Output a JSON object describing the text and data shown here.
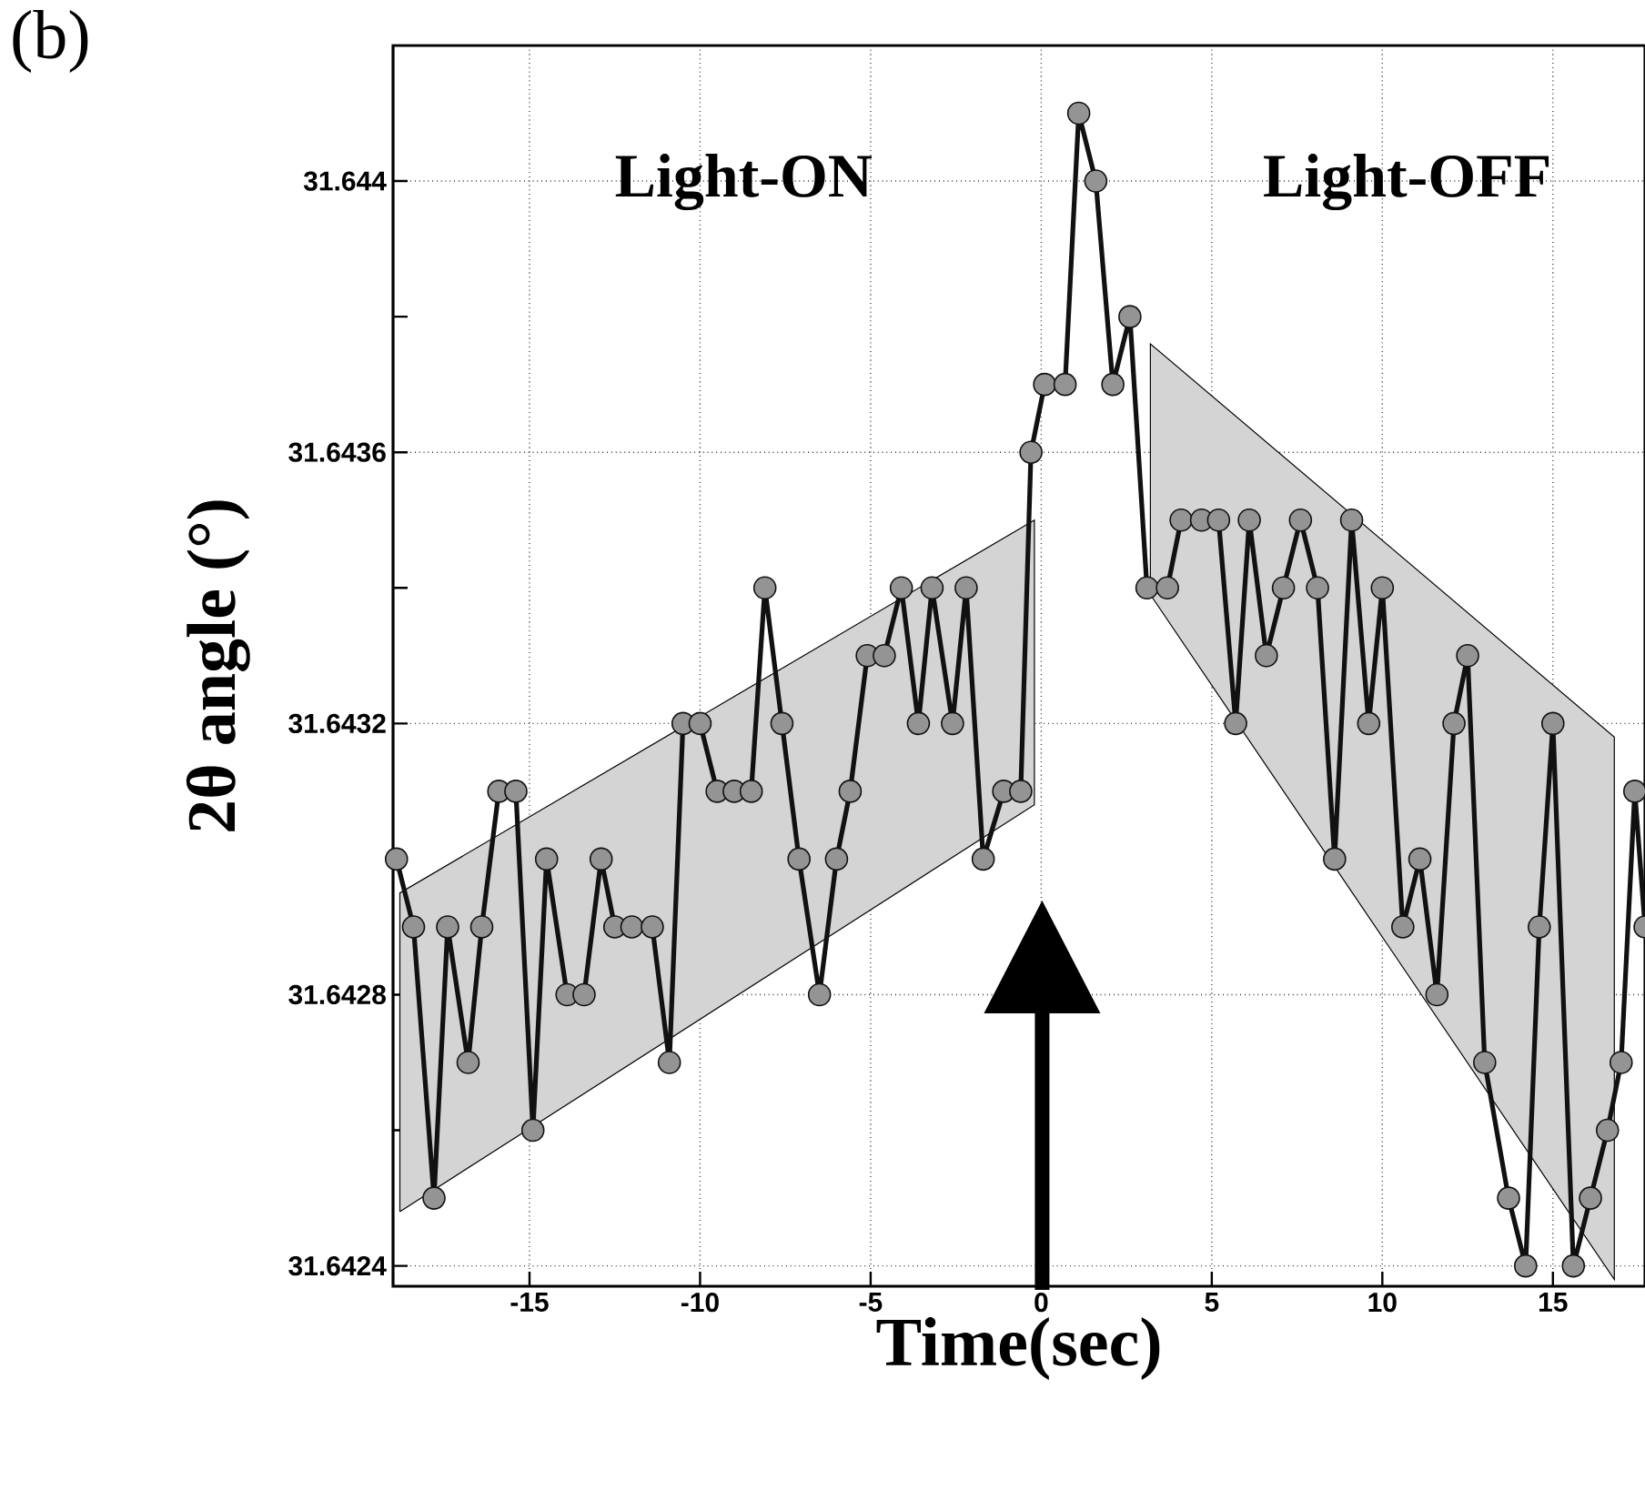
{
  "chart_data": {
    "type": "line",
    "xlabel": "Time(sec)",
    "ylabel": "2θ angle (°)",
    "annotations": [
      "(b)",
      "Light-ON",
      "Light-OFF"
    ],
    "xlim": [
      -19,
      17.7
    ],
    "ylim": [
      31.64237,
      31.6442
    ],
    "xticks": [
      -15,
      -10,
      -5,
      0,
      5,
      10,
      15
    ],
    "yticks": [
      31.6424,
      {
        "value": 31.6426,
        "label": null
      },
      31.6428,
      {
        "value": 31.643,
        "label": null
      },
      31.6432,
      {
        "value": 31.6434,
        "label": null
      },
      31.6436,
      {
        "value": 31.6438,
        "label": null
      },
      31.644
    ],
    "grid": true,
    "marker": "circle",
    "line_style": "solid",
    "series": [
      {
        "type": "area",
        "color": "#d4d4d4",
        "x": [
          -18.8,
          -0.2
        ],
        "values": [
          null,
          null
        ],
        "lower": [
          31.64248,
          31.64308
        ],
        "upper": [
          31.64295,
          31.6435
        ]
      },
      {
        "type": "area",
        "color": "#d4d4d4",
        "x": [
          3.2,
          16.8
        ],
        "values": [
          null,
          null
        ],
        "lower": [
          31.64339,
          31.64238
        ],
        "upper": [
          31.64376,
          31.64318
        ]
      },
      {
        "color": "#111111",
        "x": [
          -18.9,
          -18.4,
          -17.8,
          -17.4,
          -16.8,
          -16.4,
          -15.9,
          -15.4,
          -14.9,
          -14.5,
          -13.9,
          -13.4,
          -12.9,
          -12.5,
          -12.0,
          -11.4,
          -10.9,
          -10.5,
          -10.0,
          -9.5,
          -9.0,
          -8.5,
          -8.1,
          -7.6,
          -7.1,
          -6.5,
          -6.0,
          -5.6,
          -5.1,
          -4.6,
          -4.1,
          -3.6,
          -3.2,
          -2.6,
          -2.2,
          -1.7,
          -1.1,
          -0.6,
          -0.3,
          0.1,
          0.7,
          1.1,
          1.6,
          2.1,
          2.6,
          3.1,
          3.7,
          4.1,
          4.7,
          5.2,
          5.7,
          6.1,
          6.6,
          7.1,
          7.6,
          8.1,
          8.6,
          9.1,
          9.6,
          10.0,
          10.6,
          11.1,
          11.6,
          12.1,
          12.5,
          13.0,
          13.7,
          14.2,
          14.6,
          15.0,
          15.6,
          16.1,
          16.6,
          17.0,
          17.4,
          17.7
        ],
        "values": [
          31.643,
          31.6429,
          31.6425,
          31.6429,
          31.6427,
          31.6429,
          31.6431,
          31.6431,
          31.6426,
          31.643,
          31.6428,
          31.6428,
          31.643,
          31.6429,
          31.6429,
          31.6429,
          31.6427,
          31.6432,
          31.6432,
          31.6431,
          31.6431,
          31.6431,
          31.6434,
          31.6432,
          31.643,
          31.6428,
          31.643,
          31.6431,
          31.6433,
          31.6433,
          31.6434,
          31.6432,
          31.6434,
          31.6432,
          31.6434,
          31.643,
          31.6431,
          31.6431,
          31.6436,
          31.6437,
          31.6437,
          31.6441,
          31.644,
          31.6437,
          31.6438,
          31.6434,
          31.6434,
          31.6435,
          31.6435,
          31.6435,
          31.6432,
          31.6435,
          31.6433,
          31.6434,
          31.6435,
          31.6434,
          31.643,
          31.6435,
          31.6432,
          31.6434,
          31.6429,
          31.643,
          31.6428,
          31.6432,
          31.6433,
          31.6427,
          31.6425,
          31.6424,
          31.6429,
          31.6432,
          31.6424,
          31.6425,
          31.6426,
          31.6427,
          31.6431,
          31.6429
        ]
      }
    ]
  }
}
